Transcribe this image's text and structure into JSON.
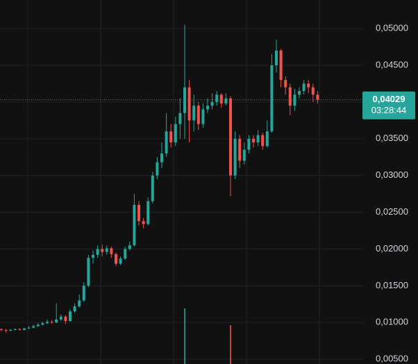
{
  "chart_data": {
    "type": "candlestick",
    "ylim": [
      0.00435,
      0.05388
    ],
    "yticks": [
      {
        "value": 0.005,
        "label": "0,00500"
      },
      {
        "value": 0.01,
        "label": "0,01000"
      },
      {
        "value": 0.015,
        "label": "0,01500"
      },
      {
        "value": 0.02,
        "label": "0,02000"
      },
      {
        "value": 0.025,
        "label": "0,02500"
      },
      {
        "value": 0.03,
        "label": "0,03000"
      },
      {
        "value": 0.035,
        "label": "0,03500"
      },
      {
        "value": 0.04,
        "label": "0,04000"
      },
      {
        "value": 0.045,
        "label": "0,04500"
      },
      {
        "value": 0.05,
        "label": "0,05000"
      }
    ],
    "grid": true,
    "up_color": "#26a69a",
    "down_color": "#ef5350",
    "last_price": {
      "value": 0.04029,
      "label": "0,04029"
    },
    "countdown": "03:28:44",
    "open": [
      0.0091,
      0.009,
      0.0089,
      0.009,
      0.0091,
      0.009,
      0.0092,
      0.0093,
      0.0095,
      0.0097,
      0.0099,
      0.0101,
      0.01,
      0.0104,
      0.0108,
      0.0102,
      0.0115,
      0.0122,
      0.013,
      0.015,
      0.0188,
      0.0192,
      0.02,
      0.0196,
      0.0201,
      0.0193,
      0.018,
      0.0187,
      0.02,
      0.0205,
      0.026,
      0.0238,
      0.0234,
      0.0265,
      0.03,
      0.0318,
      0.033,
      0.036,
      0.0345,
      0.037,
      0.0385,
      0.042,
      0.0375,
      0.0395,
      0.037,
      0.039,
      0.0395,
      0.04,
      0.041,
      0.0398,
      0.0405,
      0.03,
      0.035,
      0.032,
      0.0335,
      0.035,
      0.0345,
      0.0355,
      0.034,
      0.036,
      0.045,
      0.047,
      0.043,
      0.042,
      0.0395,
      0.041,
      0.0415,
      0.0425,
      0.042,
      0.041
    ],
    "high": [
      0.0092,
      0.0091,
      0.0091,
      0.0092,
      0.0092,
      0.0093,
      0.0095,
      0.0097,
      0.0099,
      0.0101,
      0.0104,
      0.0103,
      0.0126,
      0.0111,
      0.011,
      0.0118,
      0.0126,
      0.0138,
      0.0155,
      0.0192,
      0.0198,
      0.0205,
      0.0206,
      0.0205,
      0.0203,
      0.0195,
      0.019,
      0.0203,
      0.021,
      0.0275,
      0.0265,
      0.0242,
      0.027,
      0.0305,
      0.0325,
      0.0345,
      0.0385,
      0.037,
      0.038,
      0.0405,
      0.0505,
      0.043,
      0.041,
      0.04,
      0.0398,
      0.0405,
      0.0412,
      0.0415,
      0.0412,
      0.0412,
      0.0408,
      0.036,
      0.0355,
      0.0345,
      0.0355,
      0.0355,
      0.0362,
      0.0358,
      0.0375,
      0.0465,
      0.0485,
      0.0472,
      0.0435,
      0.0425,
      0.0418,
      0.042,
      0.043,
      0.043,
      0.0425,
      0.0415
    ],
    "low": [
      0.0088,
      0.0086,
      0.0088,
      0.0089,
      0.0089,
      0.0089,
      0.0091,
      0.0092,
      0.0094,
      0.0096,
      0.0098,
      0.0098,
      0.0099,
      0.0102,
      0.0098,
      0.0101,
      0.0113,
      0.012,
      0.0128,
      0.0148,
      0.018,
      0.0188,
      0.019,
      0.0192,
      0.0188,
      0.0177,
      0.0178,
      0.0185,
      0.0198,
      0.0203,
      0.0232,
      0.0228,
      0.0232,
      0.0262,
      0.0295,
      0.031,
      0.0325,
      0.0338,
      0.034,
      0.035,
      0.035,
      0.0345,
      0.036,
      0.0362,
      0.0365,
      0.0385,
      0.039,
      0.0395,
      0.0392,
      0.0395,
      0.0272,
      0.0295,
      0.031,
      0.0315,
      0.033,
      0.0338,
      0.034,
      0.0335,
      0.0338,
      0.0358,
      0.044,
      0.042,
      0.041,
      0.0382,
      0.0388,
      0.0405,
      0.041,
      0.0412,
      0.04,
      0.0398
    ],
    "close": [
      0.009,
      0.0089,
      0.009,
      0.0091,
      0.009,
      0.0092,
      0.0093,
      0.0095,
      0.0097,
      0.0099,
      0.0101,
      0.01,
      0.0104,
      0.0108,
      0.0102,
      0.0115,
      0.0122,
      0.013,
      0.015,
      0.0188,
      0.0192,
      0.02,
      0.0196,
      0.0201,
      0.0193,
      0.018,
      0.0187,
      0.02,
      0.0205,
      0.026,
      0.0238,
      0.0234,
      0.0265,
      0.03,
      0.0318,
      0.033,
      0.036,
      0.0345,
      0.037,
      0.0385,
      0.042,
      0.0375,
      0.0395,
      0.037,
      0.039,
      0.0395,
      0.04,
      0.041,
      0.0398,
      0.0405,
      0.03,
      0.035,
      0.032,
      0.0335,
      0.035,
      0.0345,
      0.0355,
      0.034,
      0.036,
      0.045,
      0.047,
      0.043,
      0.042,
      0.0395,
      0.041,
      0.0415,
      0.0425,
      0.042,
      0.041,
      0.0403
    ],
    "volume": [
      null,
      null,
      null,
      null,
      null,
      null,
      null,
      null,
      null,
      null,
      null,
      null,
      null,
      null,
      null,
      null,
      null,
      null,
      null,
      null,
      null,
      null,
      null,
      null,
      null,
      null,
      null,
      null,
      null,
      null,
      null,
      null,
      null,
      null,
      null,
      null,
      null,
      null,
      null,
      null,
      80,
      null,
      null,
      null,
      null,
      null,
      null,
      null,
      null,
      null,
      56,
      null,
      null,
      null,
      null,
      null,
      null,
      null,
      null,
      null,
      null,
      null,
      null,
      null,
      null,
      null,
      null,
      null,
      null,
      null
    ]
  }
}
